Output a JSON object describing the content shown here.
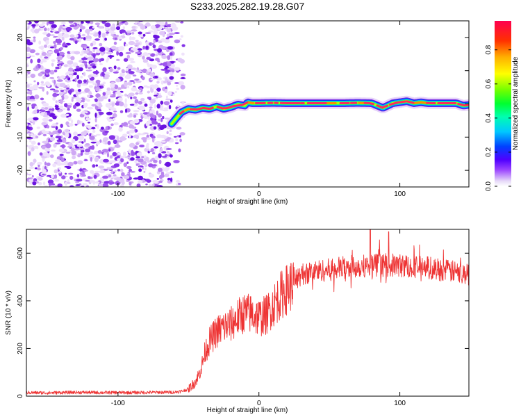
{
  "figure_title": "S233.2025.282.19.28.G07",
  "chart_data": [
    {
      "type": "heatmap",
      "title": "S233.2025.282.19.28.G07",
      "xlabel": "Height of straight line (km)",
      "ylabel": "Frequency (Hz)",
      "xlim": [
        -165,
        149
      ],
      "ylim": [
        -25,
        25
      ],
      "xticks": [
        -100,
        0,
        100
      ],
      "xtick_labels": [
        "-100",
        "0",
        "100"
      ],
      "yticks": [
        -20,
        -10,
        0,
        10,
        20
      ],
      "ytick_labels": [
        "-20",
        "-10",
        "0",
        "10",
        "20"
      ],
      "noise_region_x": [
        -165,
        -55
      ],
      "track": {
        "x": [
          -62,
          -58,
          -55,
          -50,
          -45,
          -40,
          -35,
          -30,
          -25,
          -20,
          -15,
          -10,
          -8,
          -5,
          0,
          10,
          20,
          30,
          40,
          50,
          60,
          70,
          80,
          84,
          88,
          95,
          100,
          105,
          110,
          115,
          120,
          130,
          140,
          145,
          149
        ],
        "y": [
          -6,
          -4,
          -2.5,
          -1.5,
          -1.8,
          -1.2,
          -1.5,
          -0.8,
          -1.5,
          -1.0,
          -0.2,
          -0.5,
          0.5,
          0.2,
          0.2,
          0.3,
          0.2,
          0.2,
          0.2,
          0.2,
          0.2,
          0.3,
          0.2,
          -0.5,
          -1.2,
          0.2,
          0.5,
          0.8,
          0.2,
          0.5,
          0.2,
          0.2,
          0.2,
          -0.5,
          -0.3
        ],
        "peak_amplitude": 1.0
      },
      "colorbar": {
        "label": "Normalized spectral amplitude",
        "ticks": [
          0.0,
          0.2,
          0.4,
          0.6,
          0.8
        ],
        "tick_labels": [
          "0.0",
          "0.2",
          "0.4",
          "0.6",
          "0.8"
        ],
        "range": [
          0,
          0.97
        ]
      }
    },
    {
      "type": "line",
      "xlabel": "Height of straight line (km)",
      "ylabel": "SNR (10 * v/v)",
      "xlim": [
        -165,
        149
      ],
      "ylim": [
        0,
        700
      ],
      "xticks": [
        -100,
        0,
        100
      ],
      "xtick_labels": [
        "-100",
        "0",
        "100"
      ],
      "yticks": [
        0,
        200,
        400,
        600
      ],
      "ytick_labels": [
        "0",
        "200",
        "400",
        "600"
      ],
      "series": [
        {
          "name": "SNR",
          "color": "#ee3333",
          "x": [
            -165,
            -150,
            -130,
            -110,
            -90,
            -70,
            -60,
            -55,
            -50,
            -45,
            -42,
            -40,
            -38,
            -35,
            -30,
            -25,
            -20,
            -15,
            -10,
            -5,
            0,
            5,
            10,
            15,
            20,
            25,
            30,
            40,
            50,
            60,
            70,
            80,
            90,
            100,
            110,
            120,
            130,
            140,
            149
          ],
          "values": [
            15,
            14,
            16,
            15,
            15,
            16,
            17,
            20,
            30,
            60,
            100,
            140,
            190,
            230,
            270,
            290,
            300,
            330,
            350,
            345,
            330,
            340,
            380,
            420,
            450,
            480,
            510,
            525,
            530,
            540,
            545,
            550,
            550,
            548,
            545,
            540,
            530,
            520,
            510
          ]
        }
      ],
      "annotations": [
        {
          "x": 79,
          "y": 300,
          "type": "dip"
        },
        {
          "x": 79,
          "y": 700,
          "type": "spike"
        },
        {
          "x": 92,
          "y": 690,
          "type": "spike"
        }
      ]
    }
  ],
  "colors": {
    "snr_line": "#ee3333",
    "noise": "#7a2ae0",
    "track_core": "#ff2a5a"
  }
}
